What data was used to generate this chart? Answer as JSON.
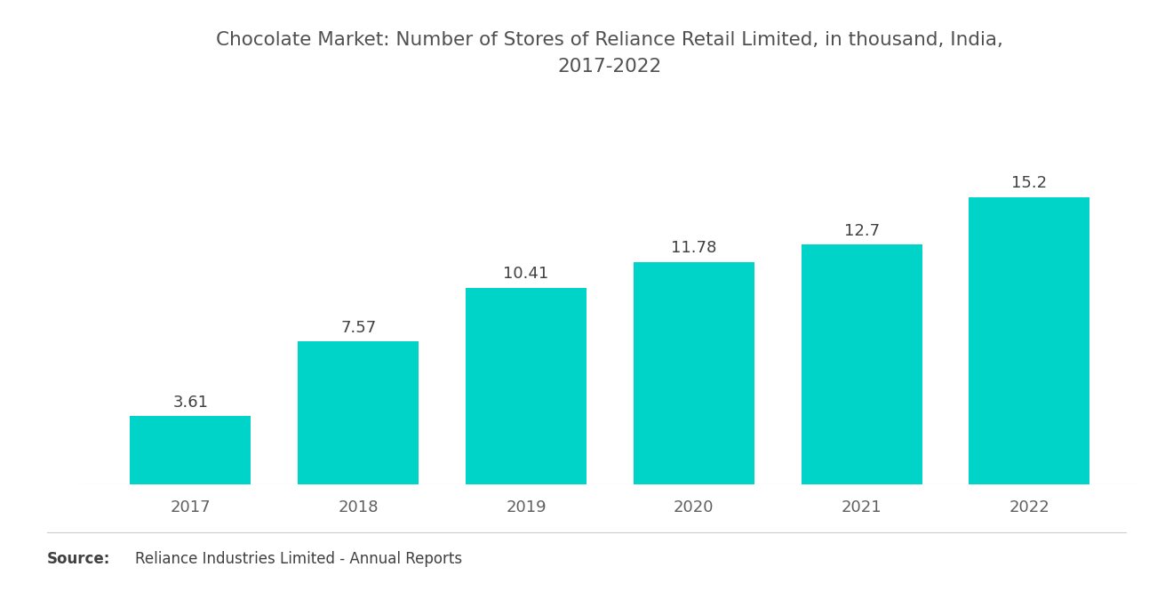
{
  "title": "Chocolate Market: Number of Stores of Reliance Retail Limited, in thousand, India,\n2017-2022",
  "years": [
    "2017",
    "2018",
    "2019",
    "2020",
    "2021",
    "2022"
  ],
  "values": [
    3.61,
    7.57,
    10.41,
    11.78,
    12.7,
    15.2
  ],
  "bar_color": "#00D4C8",
  "background_color": "#FFFFFF",
  "title_color": "#505050",
  "label_color": "#404040",
  "tick_color": "#606060",
  "source_bold": "Source:",
  "source_text": "Reliance Industries Limited - Annual Reports",
  "title_fontsize": 15.5,
  "label_fontsize": 13,
  "tick_fontsize": 13,
  "source_fontsize": 12,
  "ylim": [
    0,
    20
  ],
  "bar_width": 0.72
}
